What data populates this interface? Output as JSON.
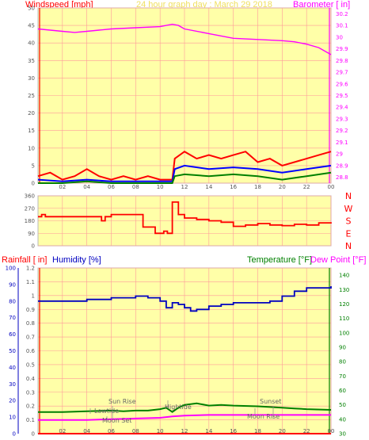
{
  "header": {
    "title": "24 hour graph day : March 29 2018"
  },
  "colors": {
    "panel_bg": "#ffffa8",
    "grid": "#ff9a9a",
    "wind_gust": "#ff0000",
    "wind_avg": "#0000ff",
    "wind_min": "#008000",
    "baro": "#ff00ff",
    "direction": "#ff0000",
    "humidity": "#0000c0",
    "temperature": "#008000",
    "dewpoint": "#ff00ff",
    "rain": "#ff0000",
    "tick": "#555555",
    "annot": "#666666"
  },
  "x_hour_labels": [
    "02",
    "04",
    "06",
    "08",
    "10",
    "12",
    "14",
    "16",
    "18",
    "20",
    "22",
    "00"
  ],
  "chart_data": [
    {
      "type": "line",
      "name": "wind-baro",
      "left_label": "Windspeed [mph]",
      "right_label": "Barometer [ in]",
      "left_ticks": [
        "0",
        "5",
        "10",
        "15",
        "20",
        "25",
        "30",
        "35",
        "40",
        "45",
        "50"
      ],
      "right_ticks": [
        "28.8",
        "28.9",
        "29",
        "29.1",
        "29.2",
        "29.3",
        "29.4",
        "29.5",
        "29.6",
        "29.7",
        "29.8",
        "29.9",
        "30",
        "30.1",
        "30.2"
      ],
      "left_range": [
        0,
        50
      ],
      "right_range": [
        28.75,
        30.25
      ],
      "x_range": [
        0,
        24
      ],
      "baro_series": {
        "x": [
          0,
          2,
          3,
          4,
          5,
          6,
          8,
          10,
          11,
          11.5,
          12,
          14,
          16,
          18,
          20,
          21,
          22,
          23,
          24
        ],
        "y": [
          30.07,
          30.05,
          30.04,
          30.05,
          30.06,
          30.07,
          30.08,
          30.09,
          30.11,
          30.1,
          30.07,
          30.03,
          29.99,
          29.98,
          29.97,
          29.96,
          29.94,
          29.91,
          29.85
        ]
      },
      "gust_series": {
        "x": [
          0,
          1,
          2,
          3,
          4,
          5,
          6,
          7,
          8,
          9,
          10,
          11,
          11.2,
          12,
          13,
          14,
          15,
          16,
          17,
          18,
          19,
          20,
          21,
          22,
          23,
          24
        ],
        "y": [
          2,
          3,
          1,
          2,
          4,
          2,
          1,
          2,
          1,
          2,
          1,
          1,
          7,
          9,
          7,
          8,
          7,
          8,
          9,
          6,
          7,
          5,
          6,
          7,
          8,
          9
        ]
      },
      "avg_series": {
        "x": [
          0,
          2,
          4,
          6,
          8,
          10,
          11,
          11.2,
          12,
          14,
          16,
          18,
          20,
          22,
          24
        ],
        "y": [
          1,
          0.5,
          1,
          0.5,
          0.5,
          0.5,
          0.5,
          4,
          5,
          4,
          4.5,
          4,
          3,
          4,
          5
        ]
      },
      "min_series": {
        "x": [
          0,
          2,
          4,
          6,
          8,
          10,
          11,
          11.2,
          12,
          14,
          16,
          18,
          20,
          22,
          24
        ],
        "y": [
          0,
          0,
          0.5,
          0,
          0,
          0,
          0,
          2,
          2.5,
          2,
          2.5,
          2,
          1,
          2,
          3
        ]
      }
    },
    {
      "type": "line",
      "name": "wind-direction",
      "left_ticks": [
        "0",
        "90",
        "180",
        "270",
        "360"
      ],
      "right_ticks": [
        "N",
        "W",
        "S",
        "E",
        "N"
      ],
      "left_range": [
        0,
        360
      ],
      "x_range": [
        0,
        24
      ],
      "direction_series": {
        "x": [
          0,
          0.3,
          0.6,
          1,
          2,
          3,
          4,
          5,
          5.2,
          5.5,
          6,
          7,
          8,
          8.5,
          8.6,
          9.5,
          9.6,
          10,
          10.3,
          10.6,
          11,
          11.3,
          11.5,
          12,
          13,
          14,
          15,
          16,
          17,
          18,
          19,
          20,
          21,
          22,
          23,
          24
        ],
        "y": [
          210,
          225,
          210,
          210,
          210,
          210,
          210,
          210,
          180,
          210,
          225,
          225,
          225,
          225,
          135,
          135,
          90,
          90,
          105,
          90,
          315,
          315,
          225,
          200,
          190,
          180,
          170,
          140,
          150,
          160,
          150,
          145,
          155,
          150,
          165,
          160
        ]
      }
    },
    {
      "type": "line",
      "name": "temp-hum-rain",
      "left_label_1": "Rainfall [ in]",
      "left_label_2": "Humidity [%]",
      "right_label_1": "Temperature [°F]",
      "right_label_2": "Dew Point [°F]",
      "rain_ticks": [
        "0",
        "0.1",
        "0.2",
        "0.3",
        "0.4",
        "0.5",
        "0.6",
        "0.7",
        "0.8",
        "0.9",
        "1",
        "1.1",
        "1.2"
      ],
      "hum_ticks": [
        "0",
        "10",
        "20",
        "30",
        "40",
        "50",
        "60",
        "70",
        "80",
        "90",
        "100"
      ],
      "temp_ticks": [
        "30",
        "40",
        "50",
        "60",
        "70",
        "80",
        "90",
        "100",
        "110",
        "120",
        "130",
        "140"
      ],
      "hum_range": [
        0,
        100
      ],
      "temp_range": [
        30,
        145
      ],
      "x_range": [
        0,
        24
      ],
      "humidity_series": {
        "x": [
          0,
          2,
          4,
          6,
          8,
          9,
          10,
          10.5,
          11,
          11.5,
          12,
          12.5,
          13,
          14,
          15,
          16,
          18,
          19,
          20,
          21,
          22,
          24
        ],
        "y": [
          80,
          80,
          81,
          82,
          83,
          82,
          80,
          76,
          79,
          78,
          76,
          74,
          75,
          77,
          78,
          79,
          79,
          80,
          83,
          86,
          88,
          89
        ]
      },
      "temperature_series": {
        "x": [
          0,
          2,
          4,
          6,
          7,
          8,
          9,
          10,
          10.5,
          11,
          11.5,
          12,
          13,
          14,
          15,
          16,
          18,
          19,
          20,
          21,
          22,
          24
        ],
        "y": [
          45,
          45,
          45.5,
          46,
          45.5,
          46,
          46,
          47,
          48,
          45,
          48,
          50,
          51,
          49.5,
          50,
          49.5,
          49,
          48.5,
          48,
          47.5,
          47,
          46.5
        ]
      },
      "dewpoint_series": {
        "x": [
          0,
          2,
          4,
          6,
          8,
          10,
          11,
          12,
          14,
          16,
          18,
          20,
          22,
          24
        ],
        "y": [
          39.5,
          39.5,
          39.5,
          40,
          40.5,
          41,
          42,
          42.5,
          43,
          43,
          43,
          43,
          43,
          43
        ]
      },
      "rain_series": {
        "x": [
          0,
          24
        ],
        "y": [
          0,
          0
        ]
      },
      "annotations": {
        "sunrise": "Sun Rise",
        "lowtide": "Lowtide",
        "moonset": "Moon Set",
        "hightide": "Hightide",
        "sunset": "Sunset",
        "moonrise": "Moon Rise"
      }
    }
  ]
}
